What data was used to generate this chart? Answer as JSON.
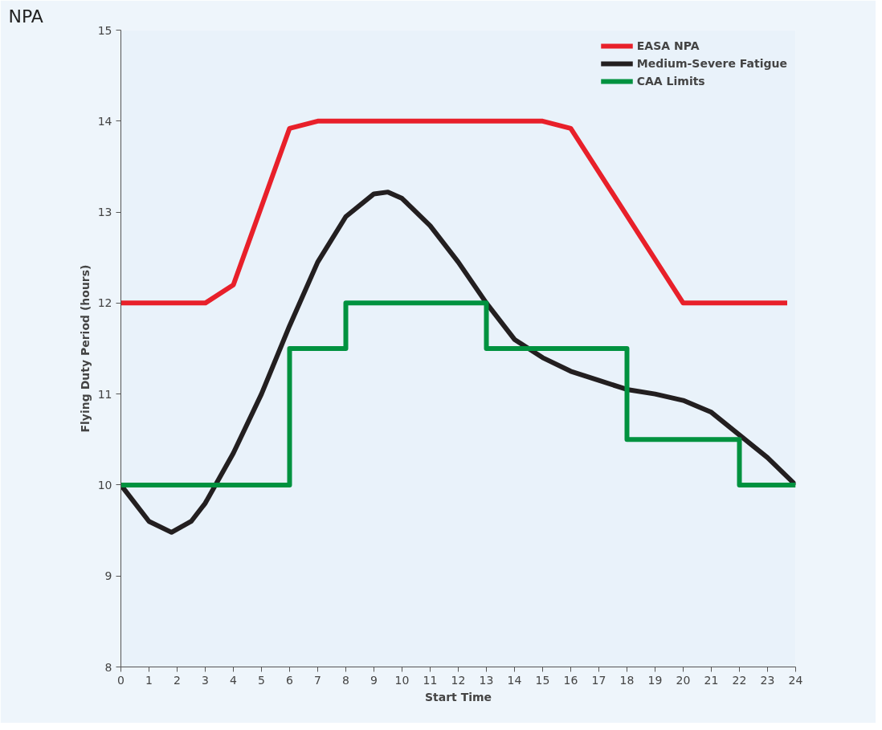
{
  "chart_data": {
    "type": "line",
    "xlabel": "Start Time",
    "ylabel": "Flying Duty Period (hours)",
    "annotations": [
      "NPA"
    ],
    "xlim": [
      0,
      24
    ],
    "ylim": [
      8,
      15
    ],
    "xticks": [
      0,
      1,
      2,
      3,
      4,
      5,
      6,
      7,
      8,
      9,
      10,
      11,
      12,
      13,
      14,
      15,
      16,
      17,
      18,
      19,
      20,
      21,
      22,
      23,
      24
    ],
    "yticks": [
      8,
      9,
      10,
      11,
      12,
      13,
      14,
      15
    ],
    "grid": false,
    "legend": "top right",
    "marker": "none",
    "line_style": "solid",
    "series": [
      {
        "name": "EASA NPA",
        "color": "#e8202a",
        "x": [
          0,
          3,
          4,
          6,
          7,
          15,
          16,
          20,
          23.7
        ],
        "values": [
          12,
          12,
          12.2,
          13.92,
          14,
          14,
          13.92,
          12,
          12
        ]
      },
      {
        "name": "Medium-Severe Fatigue",
        "color": "#231f20",
        "x": [
          0,
          1,
          1.8,
          2.5,
          3,
          4,
          5,
          6,
          7,
          8,
          9,
          9.5,
          10,
          11,
          12,
          13,
          14,
          15,
          16,
          17,
          18,
          19,
          20,
          21,
          22,
          23,
          24
        ],
        "values": [
          10,
          9.6,
          9.48,
          9.6,
          9.8,
          10.35,
          11.0,
          11.75,
          12.45,
          12.95,
          13.2,
          13.22,
          13.15,
          12.85,
          12.45,
          12.0,
          11.6,
          11.4,
          11.25,
          11.15,
          11.05,
          11.0,
          10.93,
          10.8,
          10.55,
          10.3,
          10.0
        ]
      },
      {
        "name": "CAA Limits",
        "type": "step",
        "color": "#00923f",
        "x": [
          0,
          6,
          8,
          13,
          18,
          22,
          24
        ],
        "values": [
          10,
          11.5,
          12,
          11.5,
          10.5,
          10,
          10
        ]
      }
    ]
  }
}
